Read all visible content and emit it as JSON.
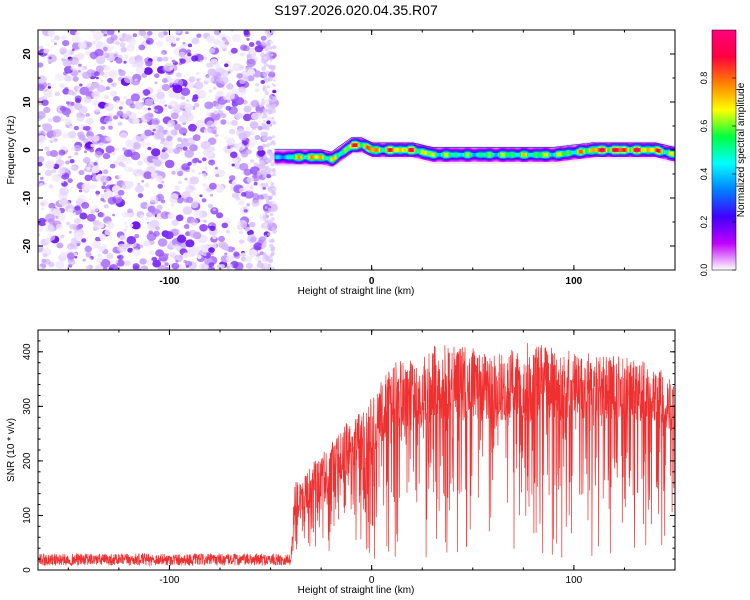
{
  "title": "S197.2026.020.04.35.R07",
  "chart_data": [
    {
      "type": "heatmap",
      "name": "spectrogram",
      "xlabel": "Height of straight line (km)",
      "ylabel": "Frequency (Hz)",
      "xlim": [
        -165,
        150
      ],
      "ylim": [
        -25,
        25
      ],
      "xticks": [
        -100,
        0,
        100
      ],
      "yticks": [
        20,
        10,
        0,
        -10,
        -20
      ],
      "noise_region_x": [
        -165,
        -48
      ],
      "signal_track": {
        "x": [
          -48,
          -35,
          -25,
          -20,
          -15,
          -10,
          -5,
          0,
          5,
          10,
          20,
          30,
          50,
          70,
          90,
          100,
          110,
          120,
          130,
          140,
          150
        ],
        "frequency": [
          -1.5,
          -1.5,
          -1.5,
          -2,
          -0.5,
          1,
          1,
          0,
          0,
          0,
          0,
          -1,
          -1,
          -1,
          -1,
          -0.5,
          0,
          0,
          0,
          0,
          -1
        ],
        "amplitude": [
          0.3,
          0.7,
          0.75,
          0.6,
          0.6,
          0.8,
          0.8,
          0.8,
          0.7,
          0.8,
          0.8,
          0.6,
          0.5,
          0.6,
          0.6,
          0.6,
          0.85,
          0.9,
          0.85,
          0.8,
          0.6
        ]
      },
      "colorbar": {
        "label": "Normalized spectral amplitude",
        "range": [
          0,
          1
        ],
        "ticks": [
          0.8,
          0.6,
          0.4,
          0.2,
          0.0
        ],
        "colors": [
          "#ffffff",
          "#c000ff",
          "#4000ff",
          "#0080ff",
          "#00ffff",
          "#00ff40",
          "#ffff00",
          "#ff8000",
          "#ff0040",
          "#ff0080"
        ]
      }
    },
    {
      "type": "line",
      "name": "snr",
      "xlabel": "Height of straight line (km)",
      "ylabel": "SNR (10 * v/v)",
      "xlim": [
        -165,
        150
      ],
      "ylim": [
        0,
        440
      ],
      "xticks": [
        -100,
        0,
        100
      ],
      "yticks": [
        0,
        100,
        200,
        300,
        400
      ],
      "color": "#f03030",
      "envelope": {
        "x": [
          -165,
          -40,
          -38,
          -30,
          -20,
          -10,
          -5,
          0,
          10,
          20,
          30,
          40,
          60,
          80,
          100,
          120,
          140,
          150
        ],
        "base": [
          15,
          15,
          120,
          135,
          170,
          200,
          215,
          240,
          300,
          300,
          320,
          330,
          320,
          320,
          320,
          320,
          320,
          290
        ],
        "peak": [
          30,
          30,
          160,
          190,
          240,
          280,
          290,
          330,
          380,
          390,
          410,
          420,
          395,
          420,
          400,
          395,
          380,
          340
        ]
      }
    }
  ]
}
